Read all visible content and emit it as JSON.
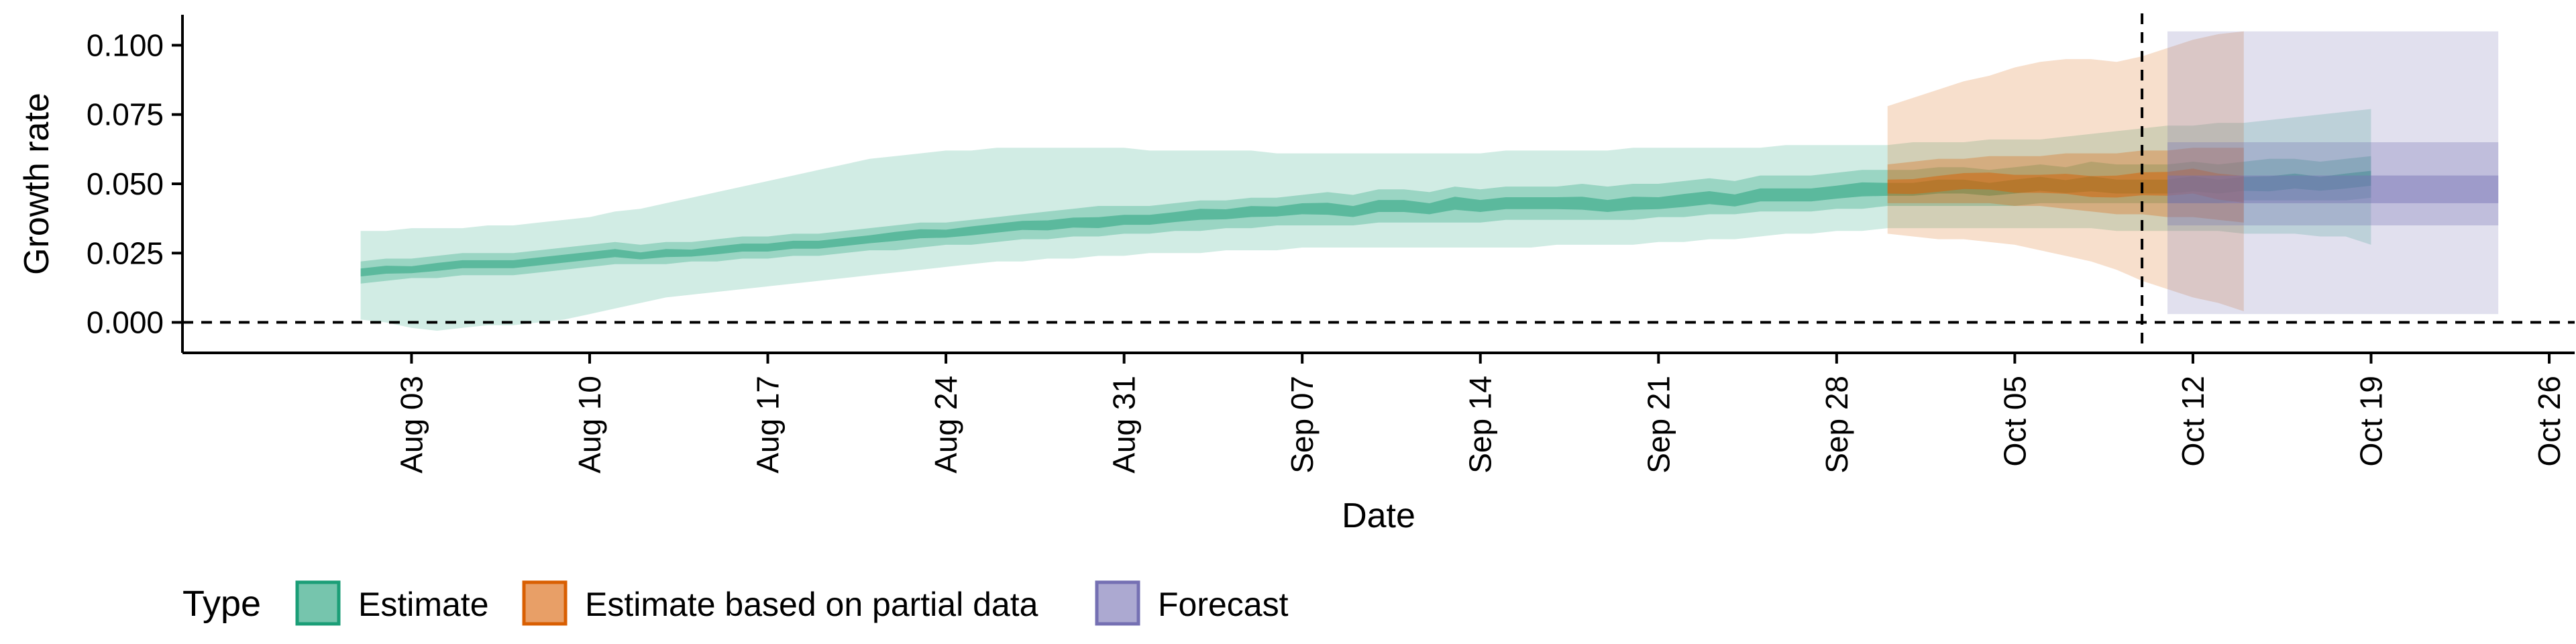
{
  "chart_data": {
    "type": "area",
    "xlabel": "Date",
    "ylabel": "Growth rate",
    "x_ticks": [
      "Aug 03",
      "Aug 10",
      "Aug 17",
      "Aug 24",
      "Aug 31",
      "Sep 07",
      "Sep 14",
      "Sep 21",
      "Sep 28",
      "Oct 05",
      "Oct 12",
      "Oct 19",
      "Oct 26"
    ],
    "x_range": [
      "2020-07-25",
      "2020-10-27"
    ],
    "y_ticks": [
      "0.000",
      "0.025",
      "0.050",
      "0.075",
      "0.100"
    ],
    "ylim": [
      -0.011,
      0.111
    ],
    "reference_lines": {
      "horizontal_y": 0.0,
      "vertical_x": "2020-10-10",
      "style": "dashed"
    },
    "grid": false,
    "legend": {
      "position": "bottom-left",
      "title": "Type",
      "entries": [
        {
          "label": "Estimate",
          "color": "#1b9e77"
        },
        {
          "label": "Estimate based on partial data",
          "color": "#d95f02"
        },
        {
          "label": "Forecast",
          "color": "#7570b3"
        }
      ]
    },
    "series": [
      {
        "name": "Estimate",
        "color": "#1b9e77",
        "start_date": "2020-08-01",
        "median": [
          0.018,
          0.019,
          0.019,
          0.02,
          0.021,
          0.021,
          0.021,
          0.022,
          0.023,
          0.024,
          0.025,
          0.024,
          0.025,
          0.025,
          0.026,
          0.027,
          0.027,
          0.028,
          0.028,
          0.029,
          0.03,
          0.031,
          0.032,
          0.032,
          0.033,
          0.034,
          0.035,
          0.035,
          0.036,
          0.036,
          0.037,
          0.037,
          0.038,
          0.039,
          0.039,
          0.04,
          0.04,
          0.041,
          0.041,
          0.04,
          0.042,
          0.042,
          0.041,
          0.043,
          0.042,
          0.043,
          0.043,
          0.043,
          0.043,
          0.042,
          0.043,
          0.043,
          0.044,
          0.045,
          0.044,
          0.046,
          0.046,
          0.046,
          0.047,
          0.048,
          0.048,
          0.048,
          0.049,
          0.049,
          0.048,
          0.049,
          0.05,
          0.049,
          0.05,
          0.049,
          0.049,
          0.049,
          0.05,
          0.049,
          0.05,
          0.05,
          0.051,
          0.05,
          0.051,
          0.052
        ],
        "inner_lower": [
          0.014,
          0.015,
          0.016,
          0.016,
          0.017,
          0.017,
          0.017,
          0.018,
          0.019,
          0.02,
          0.021,
          0.021,
          0.021,
          0.022,
          0.022,
          0.023,
          0.023,
          0.024,
          0.024,
          0.025,
          0.026,
          0.026,
          0.027,
          0.028,
          0.028,
          0.029,
          0.03,
          0.03,
          0.031,
          0.031,
          0.032,
          0.032,
          0.033,
          0.033,
          0.034,
          0.034,
          0.035,
          0.035,
          0.035,
          0.035,
          0.036,
          0.036,
          0.036,
          0.036,
          0.036,
          0.037,
          0.037,
          0.037,
          0.037,
          0.037,
          0.037,
          0.038,
          0.038,
          0.039,
          0.039,
          0.04,
          0.04,
          0.04,
          0.041,
          0.041,
          0.042,
          0.042,
          0.042,
          0.042,
          0.042,
          0.042,
          0.043,
          0.043,
          0.043,
          0.043,
          0.043,
          0.043,
          0.043,
          0.043,
          0.044,
          0.044,
          0.044,
          0.044,
          0.044,
          0.045
        ],
        "inner_upper": [
          0.022,
          0.023,
          0.023,
          0.024,
          0.025,
          0.025,
          0.025,
          0.026,
          0.027,
          0.028,
          0.029,
          0.028,
          0.029,
          0.029,
          0.03,
          0.031,
          0.031,
          0.032,
          0.032,
          0.033,
          0.034,
          0.035,
          0.036,
          0.036,
          0.037,
          0.038,
          0.039,
          0.04,
          0.041,
          0.042,
          0.042,
          0.042,
          0.043,
          0.044,
          0.044,
          0.045,
          0.045,
          0.046,
          0.047,
          0.046,
          0.048,
          0.048,
          0.047,
          0.049,
          0.048,
          0.049,
          0.049,
          0.049,
          0.05,
          0.049,
          0.05,
          0.05,
          0.051,
          0.052,
          0.051,
          0.053,
          0.053,
          0.053,
          0.054,
          0.055,
          0.055,
          0.055,
          0.056,
          0.056,
          0.055,
          0.056,
          0.057,
          0.056,
          0.058,
          0.057,
          0.057,
          0.057,
          0.058,
          0.057,
          0.058,
          0.059,
          0.059,
          0.058,
          0.059,
          0.06
        ],
        "outer_lower": [
          0.001,
          0.0,
          -0.002,
          -0.003,
          -0.002,
          -0.001,
          -0.001,
          0.0,
          0.001,
          0.003,
          0.005,
          0.007,
          0.009,
          0.01,
          0.011,
          0.012,
          0.013,
          0.014,
          0.015,
          0.016,
          0.017,
          0.018,
          0.019,
          0.02,
          0.021,
          0.022,
          0.022,
          0.023,
          0.023,
          0.024,
          0.024,
          0.025,
          0.025,
          0.025,
          0.026,
          0.026,
          0.026,
          0.027,
          0.027,
          0.027,
          0.027,
          0.027,
          0.027,
          0.027,
          0.027,
          0.027,
          0.027,
          0.028,
          0.028,
          0.028,
          0.028,
          0.029,
          0.029,
          0.03,
          0.03,
          0.031,
          0.032,
          0.032,
          0.033,
          0.033,
          0.034,
          0.034,
          0.034,
          0.034,
          0.034,
          0.034,
          0.034,
          0.034,
          0.034,
          0.033,
          0.033,
          0.033,
          0.033,
          0.033,
          0.032,
          0.032,
          0.032,
          0.031,
          0.031,
          0.028
        ],
        "outer_upper": [
          0.033,
          0.033,
          0.034,
          0.034,
          0.034,
          0.035,
          0.035,
          0.036,
          0.037,
          0.038,
          0.04,
          0.041,
          0.043,
          0.045,
          0.047,
          0.049,
          0.051,
          0.053,
          0.055,
          0.057,
          0.059,
          0.06,
          0.061,
          0.062,
          0.062,
          0.063,
          0.063,
          0.063,
          0.063,
          0.063,
          0.063,
          0.062,
          0.062,
          0.062,
          0.062,
          0.062,
          0.061,
          0.061,
          0.061,
          0.061,
          0.061,
          0.061,
          0.061,
          0.061,
          0.061,
          0.062,
          0.062,
          0.062,
          0.062,
          0.062,
          0.063,
          0.063,
          0.063,
          0.063,
          0.063,
          0.063,
          0.064,
          0.064,
          0.064,
          0.064,
          0.064,
          0.065,
          0.065,
          0.065,
          0.066,
          0.066,
          0.066,
          0.067,
          0.068,
          0.069,
          0.07,
          0.071,
          0.071,
          0.072,
          0.072,
          0.073,
          0.074,
          0.075,
          0.076,
          0.077
        ]
      },
      {
        "name": "Estimate based on partial data",
        "color": "#d95f02",
        "start_date": "2020-09-30",
        "median": [
          0.049,
          0.049,
          0.05,
          0.051,
          0.051,
          0.05,
          0.05,
          0.05,
          0.049,
          0.049,
          0.05,
          0.05,
          0.051,
          0.049,
          0.048
        ],
        "inner_lower": [
          0.043,
          0.043,
          0.043,
          0.043,
          0.043,
          0.042,
          0.042,
          0.041,
          0.04,
          0.039,
          0.039,
          0.038,
          0.038,
          0.037,
          0.036
        ],
        "inner_upper": [
          0.057,
          0.058,
          0.059,
          0.059,
          0.06,
          0.06,
          0.06,
          0.061,
          0.061,
          0.061,
          0.062,
          0.062,
          0.063,
          0.063,
          0.063
        ],
        "outer_lower": [
          0.032,
          0.031,
          0.03,
          0.03,
          0.029,
          0.028,
          0.026,
          0.024,
          0.022,
          0.019,
          0.015,
          0.012,
          0.009,
          0.007,
          0.004
        ],
        "outer_upper": [
          0.078,
          0.081,
          0.084,
          0.087,
          0.089,
          0.092,
          0.094,
          0.095,
          0.095,
          0.094,
          0.096,
          0.099,
          0.102,
          0.104,
          0.105
        ]
      },
      {
        "name": "Forecast",
        "color": "#7570b3",
        "start_date": "2020-10-11",
        "end_date": "2020-10-24",
        "median": 0.048,
        "inner_lower": 0.043,
        "inner_upper": 0.053,
        "mid_lower": 0.035,
        "mid_upper": 0.065,
        "outer_lower": 0.003,
        "outer_upper": 0.105
      }
    ]
  }
}
